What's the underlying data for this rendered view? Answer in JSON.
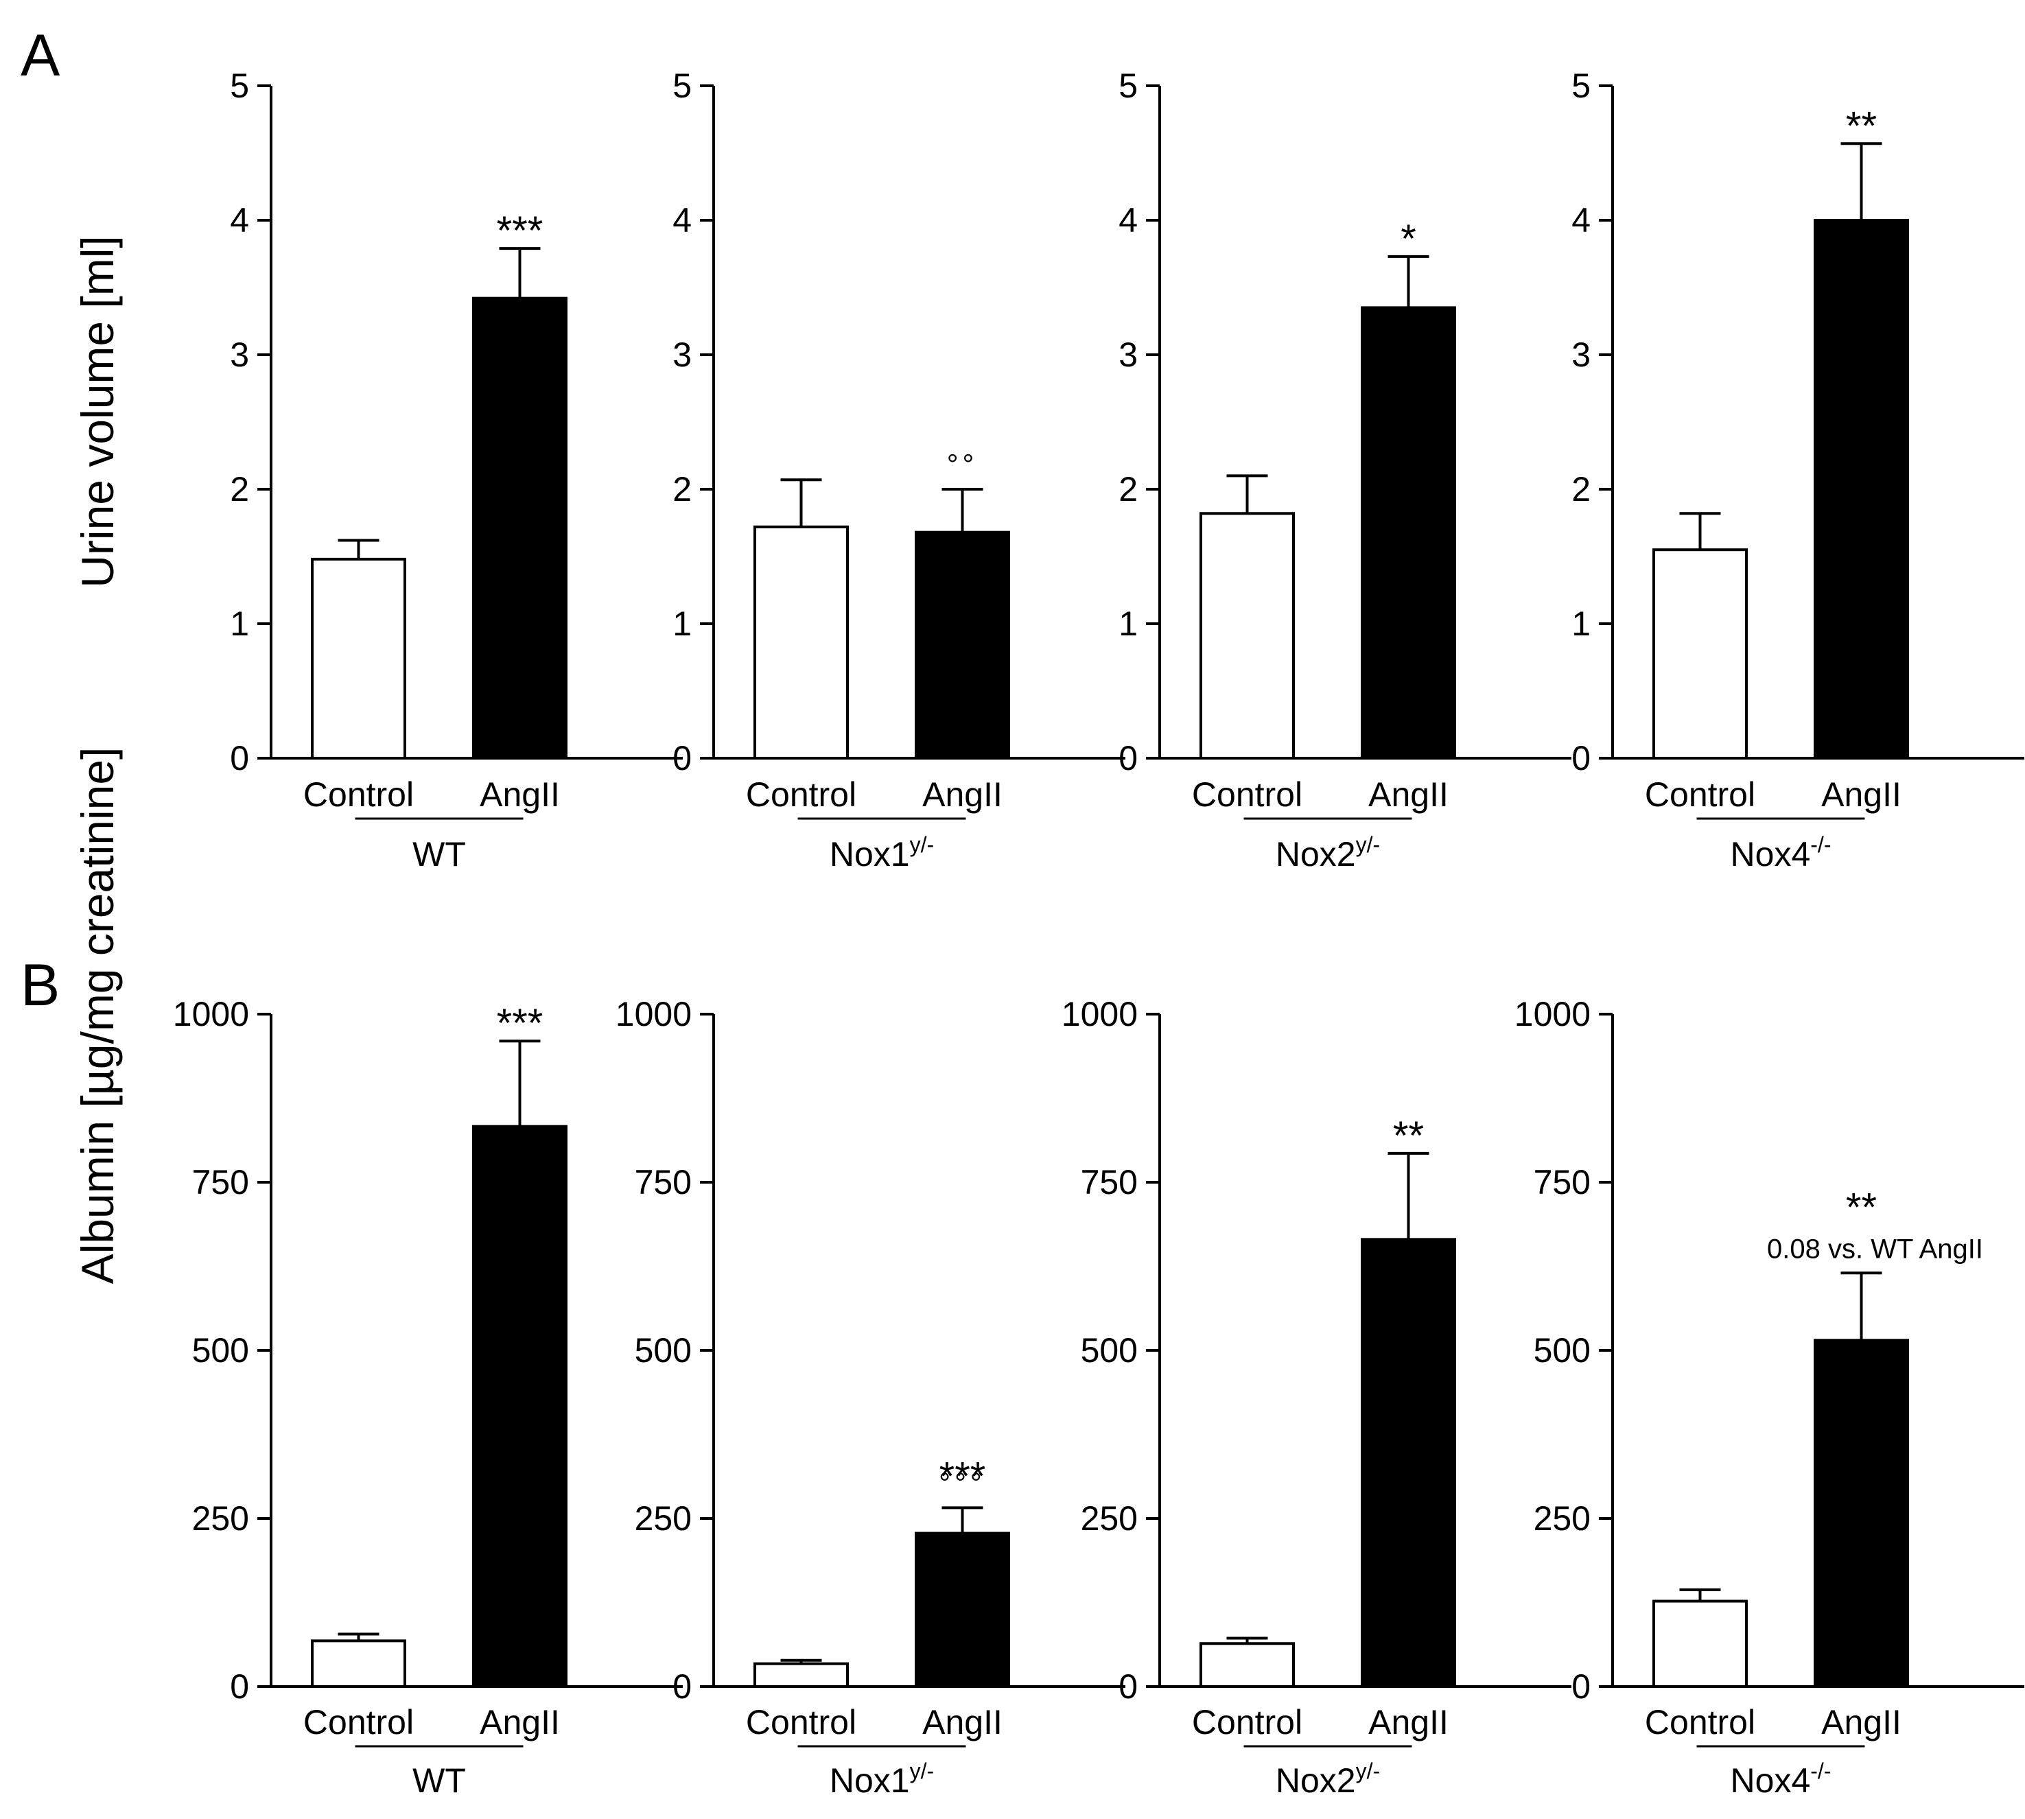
{
  "figure": {
    "rows": [
      {
        "panel_letter": "A",
        "y_title": "Urine volume [ml]",
        "y_ticks": [
          "0",
          "1",
          "2",
          "3",
          "4",
          "5"
        ],
        "ylim": [
          0,
          5
        ]
      },
      {
        "panel_letter": "B",
        "y_title": "Albumin [µg/mg creatinine]",
        "y_ticks": [
          "0",
          "250",
          "500",
          "750",
          "1000"
        ],
        "ylim": [
          0,
          1000
        ]
      }
    ]
  },
  "chart_data": [
    {
      "type": "bar",
      "panel": "A",
      "group": "WT",
      "group_sup": "",
      "categories": [
        "Control",
        "AngII"
      ],
      "values": [
        1.48,
        3.42
      ],
      "errors": [
        0.14,
        0.37
      ],
      "fill_colors": [
        "#ffffff",
        "#000000"
      ],
      "ylabel": "Urine volume [ml]",
      "ylim": [
        0,
        5
      ],
      "annotations": [
        {
          "category": "AngII",
          "stars": "***",
          "circles": "",
          "note": ""
        }
      ]
    },
    {
      "type": "bar",
      "panel": "A",
      "group": "Nox1",
      "group_sup": "y/-",
      "categories": [
        "Control",
        "AngII"
      ],
      "values": [
        1.72,
        1.68
      ],
      "errors": [
        0.35,
        0.32
      ],
      "fill_colors": [
        "#ffffff",
        "#000000"
      ],
      "ylabel": "Urine volume [ml]",
      "ylim": [
        0,
        5
      ],
      "annotations": [
        {
          "category": "AngII",
          "stars": "",
          "circles": "°°",
          "note": ""
        }
      ]
    },
    {
      "type": "bar",
      "panel": "A",
      "group": "Nox2",
      "group_sup": "y/-",
      "categories": [
        "Control",
        "AngII"
      ],
      "values": [
        1.82,
        3.35
      ],
      "errors": [
        0.28,
        0.38
      ],
      "fill_colors": [
        "#ffffff",
        "#000000"
      ],
      "ylabel": "Urine volume [ml]",
      "ylim": [
        0,
        5
      ],
      "annotations": [
        {
          "category": "AngII",
          "stars": "*",
          "circles": "",
          "note": ""
        }
      ]
    },
    {
      "type": "bar",
      "panel": "A",
      "group": "Nox4",
      "group_sup": "-/-",
      "categories": [
        "Control",
        "AngII"
      ],
      "values": [
        1.55,
        4.0
      ],
      "errors": [
        0.27,
        0.57
      ],
      "fill_colors": [
        "#ffffff",
        "#000000"
      ],
      "ylabel": "Urine volume [ml]",
      "ylim": [
        0,
        5
      ],
      "annotations": [
        {
          "category": "AngII",
          "stars": "**",
          "circles": "",
          "note": ""
        }
      ]
    },
    {
      "type": "bar",
      "panel": "B",
      "group": "WT",
      "group_sup": "",
      "categories": [
        "Control",
        "AngII"
      ],
      "values": [
        68,
        833
      ],
      "errors": [
        10,
        127
      ],
      "fill_colors": [
        "#ffffff",
        "#000000"
      ],
      "ylabel": "Albumin [µg/mg creatinine]",
      "ylim": [
        0,
        1000
      ],
      "annotations": [
        {
          "category": "AngII",
          "stars": "***",
          "circles": "",
          "note": ""
        }
      ]
    },
    {
      "type": "bar",
      "panel": "B",
      "group": "Nox1",
      "group_sup": "y/-",
      "categories": [
        "Control",
        "AngII"
      ],
      "values": [
        34,
        228
      ],
      "errors": [
        5,
        38
      ],
      "fill_colors": [
        "#ffffff",
        "#000000"
      ],
      "ylabel": "Albumin [µg/mg creatinine]",
      "ylim": [
        0,
        1000
      ],
      "annotations": [
        {
          "category": "AngII",
          "stars": "***",
          "circles": "°°°",
          "note": ""
        }
      ]
    },
    {
      "type": "bar",
      "panel": "B",
      "group": "Nox2",
      "group_sup": "y/-",
      "categories": [
        "Control",
        "AngII"
      ],
      "values": [
        64,
        665
      ],
      "errors": [
        8,
        128
      ],
      "fill_colors": [
        "#ffffff",
        "#000000"
      ],
      "ylabel": "Albumin [µg/mg creatinine]",
      "ylim": [
        0,
        1000
      ],
      "annotations": [
        {
          "category": "AngII",
          "stars": "**",
          "circles": "",
          "note": ""
        }
      ]
    },
    {
      "type": "bar",
      "panel": "B",
      "group": "Nox4",
      "group_sup": "-/-",
      "categories": [
        "Control",
        "AngII"
      ],
      "values": [
        127,
        515
      ],
      "errors": [
        17,
        100
      ],
      "fill_colors": [
        "#ffffff",
        "#000000"
      ],
      "ylabel": "Albumin [µg/mg creatinine]",
      "ylim": [
        0,
        1000
      ],
      "annotations": [
        {
          "category": "AngII",
          "stars": "**",
          "circles": "",
          "note": "0.08 vs. WT AngII"
        }
      ]
    }
  ]
}
